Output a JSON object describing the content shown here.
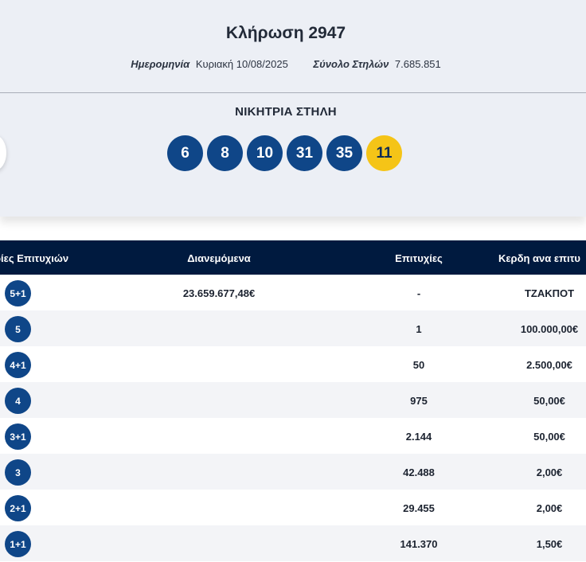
{
  "draw": {
    "title": "Κλήρωση 2947",
    "date_label": "Ημερομηνία",
    "date_value": "Κυριακή 10/08/2025",
    "columns_label": "Σύνολο Στηλών",
    "columns_value": "7.685.851"
  },
  "winning": {
    "label": "ΝΙΚΗΤΡΙΑ ΣΤΗΛΗ",
    "numbers": [
      "6",
      "8",
      "10",
      "31",
      "35"
    ],
    "bonus": "11",
    "colors": {
      "ball": "#0f4688",
      "bonus": "#f5c417"
    }
  },
  "table": {
    "headers": {
      "category": "ρίες Επιτυχιών",
      "distributed": "Διανεμόμενα",
      "winners": "Επιτυχίες",
      "prize": "Κερδη ανα επιτυ"
    },
    "rows": [
      {
        "category": "5+1",
        "distributed": "23.659.677,48€",
        "winners": "-",
        "prize": "ΤΖΑΚΠΟΤ"
      },
      {
        "category": "5",
        "distributed": "",
        "winners": "1",
        "prize": "100.000,00€"
      },
      {
        "category": "4+1",
        "distributed": "",
        "winners": "50",
        "prize": "2.500,00€"
      },
      {
        "category": "4",
        "distributed": "",
        "winners": "975",
        "prize": "50,00€"
      },
      {
        "category": "3+1",
        "distributed": "",
        "winners": "2.144",
        "prize": "50,00€"
      },
      {
        "category": "3",
        "distributed": "",
        "winners": "42.488",
        "prize": "2,00€"
      },
      {
        "category": "2+1",
        "distributed": "",
        "winners": "29.455",
        "prize": "2,00€"
      },
      {
        "category": "1+1",
        "distributed": "",
        "winners": "141.370",
        "prize": "1,50€"
      }
    ]
  }
}
